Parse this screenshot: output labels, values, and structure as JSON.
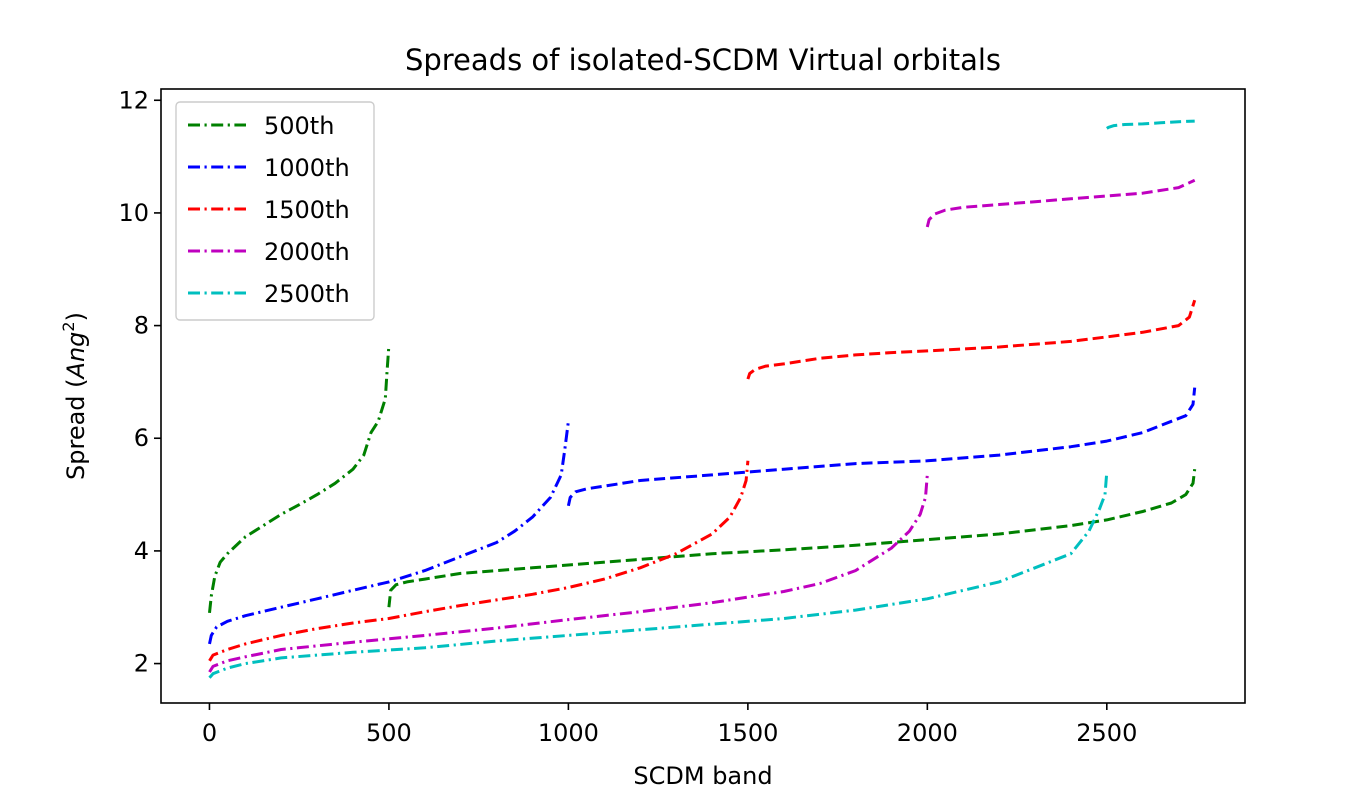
{
  "chart_data": {
    "type": "line",
    "title": "Spreads of isolated-SCDM Virtual orbitals",
    "xlabel": "SCDM band",
    "ylabel": "Spread (Ang²)",
    "ylabel_main": "Spread (",
    "ylabel_unit": "Ang",
    "ylabel_sup": "2",
    "ylabel_close": ")",
    "xlim": [
      -135,
      2885
    ],
    "ylim": [
      1.3,
      12.2
    ],
    "xticks": [
      0,
      500,
      1000,
      1500,
      2000,
      2500
    ],
    "yticks": [
      2,
      4,
      6,
      8,
      10,
      12
    ],
    "grid": false,
    "legend": "upper left",
    "series": [
      {
        "name": "500th",
        "color": "#008000",
        "segments": [
          {
            "style": "dashdot",
            "x": [
              0,
              5,
              15,
              30,
              50,
              100,
              150,
              200,
              250,
              300,
              350,
              400,
              430,
              450,
              470,
              490,
              495,
              500
            ],
            "y": [
              2.9,
              3.2,
              3.55,
              3.8,
              3.95,
              4.25,
              4.45,
              4.65,
              4.82,
              5.0,
              5.2,
              5.45,
              5.7,
              6.1,
              6.3,
              6.7,
              7.2,
              7.65
            ]
          },
          {
            "style": "dashed",
            "x": [
              500,
              505,
              520,
              550,
              600,
              700,
              800,
              900,
              1000,
              1200,
              1400,
              1600,
              1800,
              2000,
              2200,
              2400,
              2500,
              2600,
              2680,
              2720,
              2740,
              2745
            ],
            "y": [
              3.0,
              3.3,
              3.4,
              3.45,
              3.5,
              3.6,
              3.65,
              3.7,
              3.75,
              3.85,
              3.95,
              4.02,
              4.1,
              4.2,
              4.3,
              4.45,
              4.55,
              4.7,
              4.85,
              5.0,
              5.2,
              5.45
            ]
          }
        ]
      },
      {
        "name": "1000th",
        "color": "#0000ff",
        "segments": [
          {
            "style": "dashdot",
            "x": [
              0,
              5,
              20,
              50,
              100,
              200,
              300,
              400,
              500,
              600,
              700,
              800,
              850,
              900,
              950,
              980,
              990,
              1000
            ],
            "y": [
              2.35,
              2.5,
              2.65,
              2.75,
              2.85,
              3.0,
              3.15,
              3.3,
              3.45,
              3.65,
              3.9,
              4.15,
              4.35,
              4.6,
              4.95,
              5.35,
              5.8,
              6.3
            ]
          },
          {
            "style": "dashed",
            "x": [
              1000,
              1005,
              1020,
              1050,
              1100,
              1200,
              1400,
              1600,
              1800,
              2000,
              2200,
              2400,
              2500,
              2600,
              2680,
              2720,
              2740,
              2745
            ],
            "y": [
              4.8,
              4.95,
              5.05,
              5.1,
              5.15,
              5.25,
              5.35,
              5.45,
              5.55,
              5.6,
              5.7,
              5.85,
              5.95,
              6.1,
              6.3,
              6.4,
              6.6,
              6.9
            ]
          }
        ]
      },
      {
        "name": "1500th",
        "color": "#ff0000",
        "segments": [
          {
            "style": "dashdot",
            "x": [
              0,
              10,
              50,
              100,
              200,
              300,
              400,
              500,
              600,
              700,
              800,
              900,
              1000,
              1100,
              1200,
              1300,
              1400,
              1450,
              1480,
              1495,
              1500
            ],
            "y": [
              2.05,
              2.15,
              2.25,
              2.35,
              2.5,
              2.62,
              2.72,
              2.8,
              2.92,
              3.03,
              3.13,
              3.23,
              3.35,
              3.5,
              3.7,
              3.95,
              4.3,
              4.6,
              4.95,
              5.25,
              5.6
            ]
          },
          {
            "style": "dashed",
            "x": [
              1500,
              1505,
              1520,
              1550,
              1600,
              1700,
              1800,
              1900,
              2000,
              2200,
              2400,
              2500,
              2600,
              2700,
              2730,
              2745
            ],
            "y": [
              7.05,
              7.15,
              7.22,
              7.28,
              7.32,
              7.42,
              7.48,
              7.52,
              7.55,
              7.62,
              7.72,
              7.8,
              7.88,
              8.0,
              8.15,
              8.45
            ]
          }
        ]
      },
      {
        "name": "2000th",
        "color": "#bf00bf",
        "segments": [
          {
            "style": "dashdot",
            "x": [
              0,
              10,
              50,
              100,
              200,
              400,
              600,
              800,
              1000,
              1200,
              1400,
              1600,
              1700,
              1800,
              1900,
              1950,
              1980,
              1995,
              2000
            ],
            "y": [
              1.85,
              1.95,
              2.05,
              2.12,
              2.25,
              2.38,
              2.5,
              2.63,
              2.78,
              2.92,
              3.08,
              3.28,
              3.42,
              3.65,
              4.05,
              4.35,
              4.65,
              4.95,
              5.35
            ]
          },
          {
            "style": "dashed",
            "x": [
              2000,
              2005,
              2020,
              2050,
              2100,
              2200,
              2300,
              2400,
              2500,
              2600,
              2700,
              2745
            ],
            "y": [
              9.75,
              9.88,
              9.98,
              10.05,
              10.1,
              10.15,
              10.2,
              10.25,
              10.3,
              10.35,
              10.45,
              10.58
            ]
          }
        ]
      },
      {
        "name": "2500th",
        "color": "#00bfbf",
        "segments": [
          {
            "style": "dashdot",
            "x": [
              0,
              10,
              50,
              100,
              200,
              400,
              600,
              800,
              1000,
              1200,
              1400,
              1600,
              1800,
              2000,
              2200,
              2300,
              2400,
              2450,
              2480,
              2495,
              2500
            ],
            "y": [
              1.75,
              1.82,
              1.92,
              2.0,
              2.1,
              2.2,
              2.28,
              2.4,
              2.5,
              2.6,
              2.7,
              2.8,
              2.95,
              3.15,
              3.45,
              3.7,
              3.95,
              4.35,
              4.75,
              5.0,
              5.4
            ]
          },
          {
            "style": "dashed",
            "x": [
              2500,
              2505,
              2520,
              2550,
              2600,
              2650,
              2700,
              2745
            ],
            "y": [
              11.5,
              11.52,
              11.55,
              11.57,
              11.58,
              11.6,
              11.62,
              11.63
            ]
          }
        ]
      }
    ]
  }
}
